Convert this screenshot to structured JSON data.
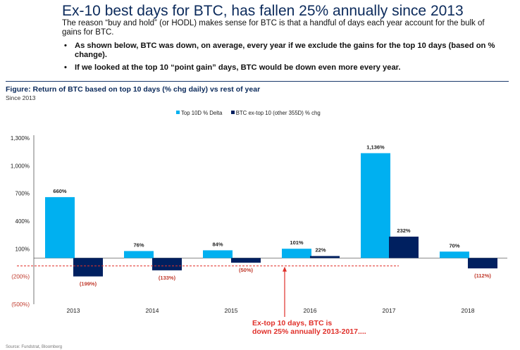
{
  "header": {
    "title": "Ex-10 best days for BTC, has fallen 25% annually since 2013",
    "intro": "The reason “buy and hold” (or HODL) makes sense for BTC is that a handful of days each year account for the bulk of gains for BTC.",
    "bullets": [
      "As shown below, BTC was down, on average, every year if we exclude the gains for the top 10 days (based on % change).",
      "If we looked at the top 10 “point gain” days, BTC  would be down even more every year."
    ]
  },
  "figure": {
    "title": "Figure: Return of BTC based on top 10 days (% chg daily) vs rest of year",
    "subtitle": "Since 2013",
    "source": "Source: Fundstrat, Bloomberg"
  },
  "chart_data": {
    "type": "bar",
    "categories": [
      "2013",
      "2014",
      "2015",
      "2016",
      "2017",
      "2018"
    ],
    "series": [
      {
        "name": "Top 10D % Delta",
        "color": "#00b0f0",
        "values": [
          660,
          76,
          84,
          101,
          1136,
          70
        ],
        "labels": [
          "660%",
          "76%",
          "84%",
          "101%",
          "1,136%",
          "70%"
        ]
      },
      {
        "name": "BTC ex-top 10 (other 355D) % chg",
        "color": "#002060",
        "values": [
          -199,
          -133,
          -50,
          22,
          232,
          -112
        ],
        "labels": [
          "(199%)",
          "(133%)",
          "(50%)",
          "22%",
          "232%",
          "(112%)"
        ]
      }
    ],
    "yticks": [
      1300,
      1000,
      700,
      400,
      100,
      -200,
      -500
    ],
    "ytick_labels": [
      "1,300%",
      "1,000%",
      "700%",
      "400%",
      "100%",
      "(200%)",
      "(500%)"
    ],
    "ylim": [
      -500,
      1300
    ],
    "reference_line": {
      "value": -85,
      "color": "#e0302a"
    },
    "annotation": {
      "lines": [
        "Ex-top 10 days, BTC is",
        "down 25% annually 2013-2017...."
      ],
      "color": "#e0302a",
      "category": "2016"
    },
    "legend": "top-center",
    "grid": false
  }
}
